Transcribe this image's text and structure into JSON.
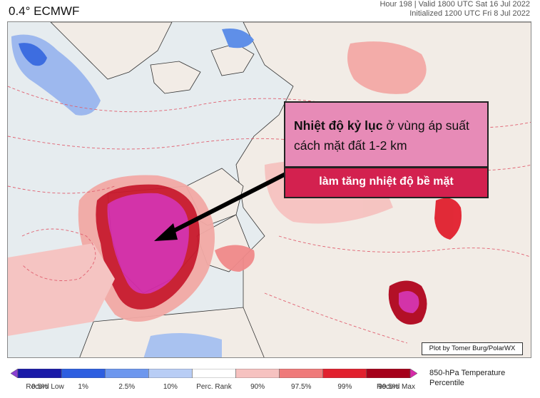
{
  "header": {
    "resolution_label": "0.4° ECMWF",
    "valid_line": "Hour 198 | Valid 1800 UTC Sat 16 Jul 2022",
    "init_line": "Initialized 1200 UTC Fri 8 Jul 2022"
  },
  "callout": {
    "bold_text": "Nhiệt độ kỷ lục",
    "rest_text": " ở vùng áp suất cách mặt đất 1-2 km",
    "sub_text": "làm tăng nhiệt độ bề mặt"
  },
  "credit": "Plot by Tomer Burg/PolarWX",
  "colorbar": {
    "title_line1": "850-hPa Temperature",
    "title_line2": "Percentile",
    "tick_labels": [
      "Record Low",
      "0.5%",
      "1%",
      "2.5%",
      "10%",
      "Perc. Rank",
      "90%",
      "97.5%",
      "99%",
      "99.5%",
      "Record Max"
    ],
    "colors": [
      "#8a3fd1",
      "#1a1aa8",
      "#2d5ee0",
      "#6d97ee",
      "#b8cdf5",
      "#ffffff",
      "#f6c2c0",
      "#ef7a7a",
      "#e1202e",
      "#a5001a",
      "#d62aa8"
    ]
  }
}
